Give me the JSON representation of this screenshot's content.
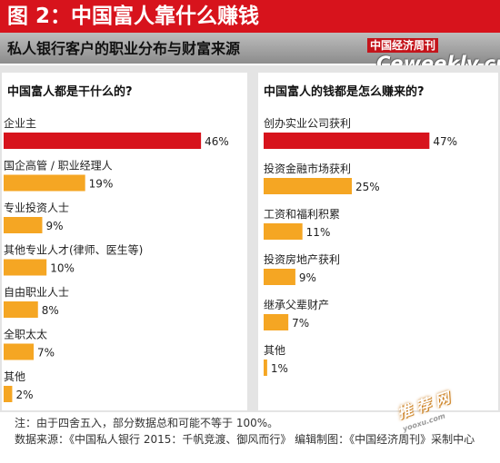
{
  "header": {
    "title": "图 2：中国富人靠什么赚钱",
    "subtitle": "私人银行客户的职业分布与财富来源",
    "magazine_logo": "中国经济周刊",
    "site_logo": "Ceweekly.cn"
  },
  "chart_data": [
    {
      "type": "bar",
      "orientation": "horizontal",
      "title": "中国富人都是干什么的?",
      "categories": [
        "企业主",
        "国企高管 / 职业经理人",
        "专业投资人士",
        "其他专业人才(律师、医生等)",
        "自由职业人士",
        "全职太太",
        "其他"
      ],
      "values": [
        46,
        19,
        9,
        10,
        8,
        7,
        2
      ],
      "value_labels": [
        "46%",
        "19%",
        "9%",
        "10%",
        "8%",
        "7%",
        "2%"
      ],
      "unit": "%",
      "xlim": [
        0,
        50
      ],
      "colors": [
        "#d7131c",
        "#f5a623",
        "#f5a623",
        "#f5a623",
        "#f5a623",
        "#f5a623",
        "#f5a623"
      ]
    },
    {
      "type": "bar",
      "orientation": "horizontal",
      "title": "中国富人的钱都是怎么赚来的?",
      "categories": [
        "创办实业公司获利",
        "投资金融市场获利",
        "工资和福利积累",
        "投资房地产获利",
        "继承父辈财产",
        "其他"
      ],
      "values": [
        47,
        25,
        11,
        9,
        7,
        1
      ],
      "value_labels": [
        "47%",
        "25%",
        "11%",
        "9%",
        "7%",
        "1%"
      ],
      "unit": "%",
      "xlim": [
        0,
        50
      ],
      "colors": [
        "#d7131c",
        "#f5a623",
        "#f5a623",
        "#f5a623",
        "#f5a623",
        "#f5a623"
      ]
    }
  ],
  "footer": {
    "note": "注：由于四舍五入，部分数据总和可能不等于 100%。",
    "source": "数据来源：《中国私人银行 2015：千帆竞渡、御风而行》 编辑制图：《中国经济周刊》采制中心"
  },
  "watermark": {
    "text": "推 荐 网",
    "url": "yooxu.com"
  }
}
